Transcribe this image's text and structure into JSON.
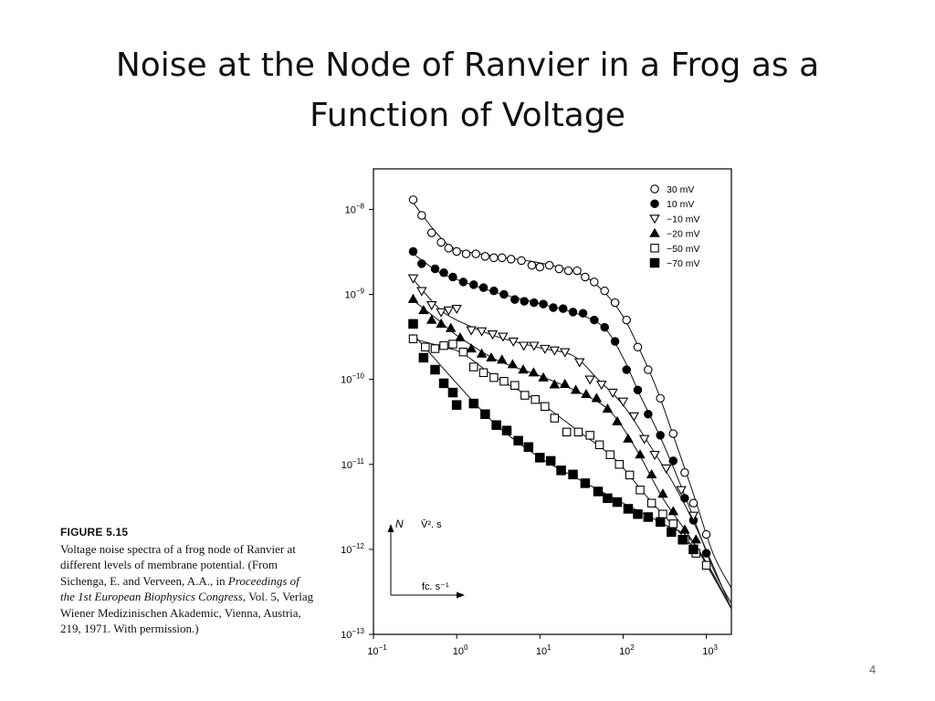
{
  "slide": {
    "title_line1": "Noise at the Node of Ranvier in a Frog as a",
    "title_line2": "Function of Voltage",
    "page_number": "4"
  },
  "figure": {
    "label": "FIGURE 5.15",
    "caption_runs": [
      {
        "text": "Voltage noise spectra of a frog node of Ranvier at different levels of membrane potential. (From Sichenga, E. and Verveen, A.A., in ",
        "italic": false
      },
      {
        "text": "Proceedings of the 1st European Biophysics Congress",
        "italic": true
      },
      {
        "text": ", Vol. 5, Verlag Wiener Medizinischen Akademic, Vienna, Austria, 219, 1971. With permission.)",
        "italic": false
      }
    ]
  },
  "chart_data": {
    "type": "scatter",
    "scale": "log-log",
    "xlim": [
      0.1,
      2000
    ],
    "ylim": [
      1e-13,
      3e-08
    ],
    "x_ticks": [
      {
        "value": 0.1,
        "base": "10",
        "exp": "−1"
      },
      {
        "value": 1,
        "base": "10",
        "exp": "0"
      },
      {
        "value": 10,
        "base": "10",
        "exp": "1"
      },
      {
        "value": 100,
        "base": "10",
        "exp": "2"
      },
      {
        "value": 1000,
        "base": "10",
        "exp": "3"
      }
    ],
    "y_ticks": [
      {
        "value": 1e-08,
        "base": "10",
        "exp": "−8"
      },
      {
        "value": 1e-09,
        "base": "10",
        "exp": "−9"
      },
      {
        "value": 1e-10,
        "base": "10",
        "exp": "−10"
      },
      {
        "value": 1e-11,
        "base": "10",
        "exp": "−11"
      },
      {
        "value": 1e-12,
        "base": "10",
        "exp": "−12"
      },
      {
        "value": 1e-13,
        "base": "10",
        "exp": "−13"
      }
    ],
    "inset_axes": {
      "y_label": "N",
      "y_unit": "V̄². s",
      "x_unit": "fc. s⁻¹"
    },
    "legend_position": "top-right",
    "series": [
      {
        "name": "30 mV",
        "marker": "open-circle",
        "points": [
          [
            0.3,
            1.3e-08
          ],
          [
            0.38,
            8.5e-09
          ],
          [
            0.5,
            5.3e-09
          ],
          [
            0.65,
            4.1e-09
          ],
          [
            0.8,
            3.5e-09
          ],
          [
            1.0,
            3.2e-09
          ],
          [
            1.3,
            3e-09
          ],
          [
            1.7,
            3e-09
          ],
          [
            2.2,
            2.8e-09
          ],
          [
            2.8,
            2.7e-09
          ],
          [
            3.5,
            2.7e-09
          ],
          [
            4.5,
            2.6e-09
          ],
          [
            6,
            2.5e-09
          ],
          [
            8,
            2.2e-09
          ],
          [
            10,
            2.1e-09
          ],
          [
            13,
            2.2e-09
          ],
          [
            17,
            2e-09
          ],
          [
            22,
            1.9e-09
          ],
          [
            28,
            1.9e-09
          ],
          [
            35,
            1.6e-09
          ],
          [
            45,
            1.4e-09
          ],
          [
            60,
            1.1e-09
          ],
          [
            80,
            8e-10
          ],
          [
            110,
            5e-10
          ],
          [
            150,
            2.4e-10
          ],
          [
            200,
            1.3e-10
          ],
          [
            280,
            6e-11
          ],
          [
            400,
            2.3e-11
          ],
          [
            550,
            8e-12
          ],
          [
            700,
            3.5e-12
          ],
          [
            1000,
            1.5e-12
          ]
        ]
      },
      {
        "name": "10 mV",
        "marker": "filled-circle",
        "points": [
          [
            0.3,
            3.2e-09
          ],
          [
            0.38,
            2.3e-09
          ],
          [
            0.55,
            2e-09
          ],
          [
            0.7,
            1.8e-09
          ],
          [
            0.9,
            1.6e-09
          ],
          [
            1.2,
            1.4e-09
          ],
          [
            1.6,
            1.3e-09
          ],
          [
            2.1,
            1.2e-09
          ],
          [
            2.8,
            1.1e-09
          ],
          [
            3.7,
            1e-09
          ],
          [
            5,
            8.7e-10
          ],
          [
            6.5,
            8.3e-10
          ],
          [
            8.5,
            8e-10
          ],
          [
            11,
            7.7e-10
          ],
          [
            14.5,
            7e-10
          ],
          [
            19,
            6.8e-10
          ],
          [
            25,
            6.2e-10
          ],
          [
            33,
            6e-10
          ],
          [
            45,
            5e-10
          ],
          [
            60,
            4.1e-10
          ],
          [
            80,
            2.8e-10
          ],
          [
            110,
            1.3e-10
          ],
          [
            150,
            7.5e-11
          ],
          [
            200,
            3.9e-11
          ],
          [
            280,
            2.2e-11
          ],
          [
            400,
            1.1e-11
          ],
          [
            550,
            4e-12
          ],
          [
            700,
            2.2e-12
          ],
          [
            1000,
            9e-13
          ]
        ]
      },
      {
        "name": "−10 mV",
        "marker": "open-triangle-down",
        "points": [
          [
            0.3,
            1.55e-09
          ],
          [
            0.38,
            1.1e-09
          ],
          [
            0.5,
            7.5e-10
          ],
          [
            0.65,
            6.2e-10
          ],
          [
            0.8,
            6.5e-10
          ],
          [
            1.0,
            6.8e-10
          ],
          [
            1.5,
            3.8e-10
          ],
          [
            2.0,
            3.7e-10
          ],
          [
            2.7,
            3.4e-10
          ],
          [
            3.6,
            3.2e-10
          ],
          [
            4.8,
            2.8e-10
          ],
          [
            6.4,
            2.5e-10
          ],
          [
            8.5,
            2.5e-10
          ],
          [
            11.5,
            2.3e-10
          ],
          [
            15,
            2.2e-10
          ],
          [
            20,
            2.1e-10
          ],
          [
            30,
            1.6e-10
          ],
          [
            40,
            1e-10
          ],
          [
            55,
            8.7e-11
          ],
          [
            75,
            7e-11
          ],
          [
            100,
            5.5e-11
          ],
          [
            135,
            3.7e-11
          ],
          [
            180,
            2e-11
          ],
          [
            240,
            1.3e-11
          ],
          [
            330,
            9e-12
          ],
          [
            500,
            5e-12
          ],
          [
            700,
            2.5e-12
          ]
        ]
      },
      {
        "name": "−20 mV",
        "marker": "filled-triangle-up",
        "points": [
          [
            0.3,
            8.8e-10
          ],
          [
            0.4,
            6.5e-10
          ],
          [
            0.5,
            5e-10
          ],
          [
            0.65,
            4.5e-10
          ],
          [
            0.85,
            4e-10
          ],
          [
            1.1,
            3.1e-10
          ],
          [
            1.5,
            2.3e-10
          ],
          [
            2,
            2e-10
          ],
          [
            2.6,
            1.8e-10
          ],
          [
            3.5,
            1.7e-10
          ],
          [
            4.7,
            1.5e-10
          ],
          [
            6.3,
            1.3e-10
          ],
          [
            8.4,
            1.2e-10
          ],
          [
            11,
            1.05e-10
          ],
          [
            15,
            8.7e-11
          ],
          [
            20,
            8.8e-11
          ],
          [
            27,
            7.5e-11
          ],
          [
            36,
            6.7e-11
          ],
          [
            48,
            6e-11
          ],
          [
            65,
            4.5e-11
          ],
          [
            85,
            3.2e-11
          ],
          [
            115,
            2e-11
          ],
          [
            160,
            1.3e-11
          ],
          [
            220,
            7.6e-12
          ],
          [
            300,
            4.5e-12
          ],
          [
            400,
            2.8e-12
          ],
          [
            550,
            1.7e-12
          ],
          [
            750,
            1.3e-12
          ]
        ]
      },
      {
        "name": "−50 mV",
        "marker": "open-square",
        "points": [
          [
            0.3,
            3e-10
          ],
          [
            0.42,
            2.4e-10
          ],
          [
            0.55,
            2.3e-10
          ],
          [
            0.7,
            2.5e-10
          ],
          [
            0.9,
            2.6e-10
          ],
          [
            1.2,
            2.1e-10
          ],
          [
            1.6,
            1.4e-10
          ],
          [
            2.1,
            1.2e-10
          ],
          [
            2.8,
            1.05e-10
          ],
          [
            3.7,
            9.5e-11
          ],
          [
            5,
            8.5e-11
          ],
          [
            6.6,
            6.5e-11
          ],
          [
            8.8,
            5.8e-11
          ],
          [
            11.5,
            4.8e-11
          ],
          [
            15,
            3.5e-11
          ],
          [
            21,
            2.4e-11
          ],
          [
            29,
            2.4e-11
          ],
          [
            40,
            2.2e-11
          ],
          [
            52,
            1.7e-11
          ],
          [
            70,
            1.3e-11
          ],
          [
            90,
            1e-11
          ],
          [
            120,
            7.5e-12
          ],
          [
            160,
            5e-12
          ],
          [
            220,
            3.5e-12
          ],
          [
            300,
            2.6e-12
          ],
          [
            400,
            2e-12
          ],
          [
            550,
            1.3e-12
          ],
          [
            750,
            9e-13
          ],
          [
            1000,
            6.5e-13
          ]
        ]
      },
      {
        "name": "−70 mV",
        "marker": "filled-square",
        "points": [
          [
            0.3,
            4.5e-10
          ],
          [
            0.4,
            1.8e-10
          ],
          [
            0.55,
            1.3e-10
          ],
          [
            0.7,
            9e-11
          ],
          [
            0.9,
            7e-11
          ],
          [
            1.0,
            5e-11
          ],
          [
            1.6,
            5.2e-11
          ],
          [
            2.2,
            3.9e-11
          ],
          [
            3,
            2.9e-11
          ],
          [
            4,
            2.5e-11
          ],
          [
            5.5,
            1.9e-11
          ],
          [
            7.3,
            1.6e-11
          ],
          [
            10,
            1.2e-11
          ],
          [
            13.5,
            1.1e-11
          ],
          [
            18,
            8.5e-12
          ],
          [
            25,
            7.6e-12
          ],
          [
            35,
            6e-12
          ],
          [
            50,
            4.8e-12
          ],
          [
            65,
            4e-12
          ],
          [
            85,
            3.6e-12
          ],
          [
            115,
            3e-12
          ],
          [
            150,
            2.6e-12
          ],
          [
            200,
            2.4e-12
          ],
          [
            280,
            2.1e-12
          ],
          [
            380,
            1.6e-12
          ],
          [
            520,
            1.3e-12
          ],
          [
            700,
            1e-12
          ]
        ]
      }
    ],
    "fit_curves": [
      {
        "series": "30 mV",
        "points": [
          [
            0.3,
            1.2e-08
          ],
          [
            0.6,
            5e-09
          ],
          [
            1,
            3.4e-09
          ],
          [
            3,
            2.8e-09
          ],
          [
            10,
            2.35e-09
          ],
          [
            30,
            1.75e-09
          ],
          [
            60,
            1.05e-09
          ],
          [
            100,
            5.5e-10
          ],
          [
            150,
            2.5e-10
          ],
          [
            250,
            8e-11
          ],
          [
            400,
            2.2e-11
          ],
          [
            700,
            4.5e-12
          ],
          [
            1200,
            9e-13
          ],
          [
            2000,
            3.5e-13
          ]
        ]
      },
      {
        "series": "10 mV",
        "points": [
          [
            0.3,
            3e-09
          ],
          [
            0.6,
            1.85e-09
          ],
          [
            1,
            1.5e-09
          ],
          [
            3,
            1.05e-09
          ],
          [
            10,
            7.8e-10
          ],
          [
            30,
            5.8e-10
          ],
          [
            60,
            4e-10
          ],
          [
            100,
            1.8e-10
          ],
          [
            160,
            6.5e-11
          ],
          [
            300,
            1.8e-11
          ],
          [
            600,
            3.5e-12
          ],
          [
            1200,
            6e-13
          ],
          [
            2000,
            2.3e-13
          ]
        ]
      },
      {
        "name": "−10 mV",
        "series": "−10 mV",
        "points": [
          [
            0.3,
            1.5e-09
          ],
          [
            0.6,
            7e-10
          ],
          [
            1,
            5e-10
          ],
          [
            3,
            3.2e-10
          ],
          [
            10,
            2.35e-10
          ],
          [
            25,
            1.9e-10
          ],
          [
            50,
            1e-10
          ],
          [
            100,
            5e-11
          ],
          [
            200,
            1.8e-11
          ],
          [
            400,
            6e-12
          ],
          [
            800,
            1.6e-12
          ],
          [
            2000,
            2e-13
          ]
        ]
      },
      {
        "series": "−20 mV",
        "points": [
          [
            0.3,
            8.5e-10
          ],
          [
            0.6,
            5e-10
          ],
          [
            1,
            3.3e-10
          ],
          [
            3,
            1.7e-10
          ],
          [
            10,
            1.1e-10
          ],
          [
            30,
            7e-11
          ],
          [
            70,
            4.2e-11
          ],
          [
            150,
            1.4e-11
          ],
          [
            300,
            4e-12
          ],
          [
            700,
            1.2e-12
          ],
          [
            2000,
            2e-13
          ]
        ]
      },
      {
        "series": "−50 mV",
        "points": [
          [
            0.3,
            3e-10
          ],
          [
            0.7,
            2.4e-10
          ],
          [
            1.2,
            2e-10
          ],
          [
            3,
            1.05e-10
          ],
          [
            10,
            5.3e-11
          ],
          [
            30,
            2.4e-11
          ],
          [
            80,
            1.15e-11
          ],
          [
            200,
            4e-12
          ],
          [
            500,
            1.5e-12
          ],
          [
            1000,
            7e-13
          ],
          [
            2000,
            2e-13
          ]
        ]
      },
      {
        "series": "−70 mV",
        "points": [
          [
            0.3,
            3.4e-10
          ],
          [
            1,
            9e-11
          ],
          [
            3,
            2.9e-11
          ],
          [
            10,
            1.2e-11
          ],
          [
            30,
            6.6e-12
          ],
          [
            100,
            3.5e-12
          ],
          [
            300,
            2e-12
          ],
          [
            700,
            1.2e-12
          ],
          [
            2000,
            2e-13
          ]
        ]
      }
    ]
  }
}
